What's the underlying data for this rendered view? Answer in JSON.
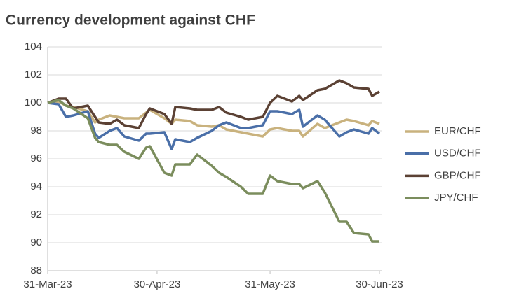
{
  "chart_data": {
    "type": "line",
    "title": "Currency development against CHF",
    "x": [
      "2023-03-31",
      "2023-04-03",
      "2023-04-05",
      "2023-04-07",
      "2023-04-11",
      "2023-04-13",
      "2023-04-14",
      "2023-04-17",
      "2023-04-19",
      "2023-04-21",
      "2023-04-25",
      "2023-04-27",
      "2023-04-28",
      "2023-05-02",
      "2023-05-04",
      "2023-05-05",
      "2023-05-09",
      "2023-05-11",
      "2023-05-15",
      "2023-05-17",
      "2023-05-19",
      "2023-05-23",
      "2023-05-25",
      "2023-05-29",
      "2023-05-31",
      "2023-06-02",
      "2023-06-06",
      "2023-06-08",
      "2023-06-09",
      "2023-06-13",
      "2023-06-15",
      "2023-06-19",
      "2023-06-21",
      "2023-06-23",
      "2023-06-27",
      "2023-06-28",
      "2023-06-30"
    ],
    "series": [
      {
        "name": "EUR/CHF",
        "color": "#c9b27e",
        "values": [
          100,
          100.1,
          99.8,
          99.7,
          99.4,
          98.6,
          98.8,
          99.1,
          99.0,
          98.9,
          98.9,
          99.3,
          99.5,
          98.9,
          98.5,
          98.8,
          98.7,
          98.4,
          98.3,
          98.4,
          98.1,
          97.9,
          97.8,
          97.6,
          98.1,
          98.2,
          98.0,
          98.0,
          97.6,
          98.5,
          98.2,
          98.6,
          98.8,
          98.7,
          98.4,
          98.7,
          98.5
        ]
      },
      {
        "name": "USD/CHF",
        "color": "#4a6fa8",
        "values": [
          100,
          99.9,
          99.0,
          99.1,
          99.4,
          97.8,
          97.5,
          98.0,
          98.2,
          97.6,
          97.3,
          97.8,
          97.8,
          97.9,
          96.7,
          97.4,
          97.2,
          97.5,
          98.0,
          98.4,
          98.6,
          98.2,
          98.2,
          98.4,
          99.4,
          99.4,
          99.2,
          99.5,
          98.3,
          99.1,
          98.8,
          97.6,
          97.9,
          98.1,
          97.8,
          98.2,
          97.8
        ]
      },
      {
        "name": "GBP/CHF",
        "color": "#5b4134",
        "values": [
          100,
          100.3,
          100.3,
          99.6,
          99.8,
          99.0,
          98.6,
          98.5,
          98.8,
          98.4,
          98.2,
          99.2,
          99.6,
          99.2,
          98.5,
          99.7,
          99.6,
          99.5,
          99.5,
          99.7,
          99.3,
          99.0,
          98.8,
          99.0,
          100.0,
          100.5,
          100.1,
          100.5,
          100.2,
          100.9,
          101.0,
          101.6,
          101.4,
          101.1,
          101.0,
          100.5,
          100.8
        ]
      },
      {
        "name": "JPY/CHF",
        "color": "#7b8d5d",
        "values": [
          100,
          100.2,
          99.8,
          99.6,
          98.9,
          97.5,
          97.2,
          97.0,
          97.0,
          96.5,
          96.0,
          96.8,
          96.9,
          95.0,
          94.8,
          95.6,
          95.6,
          96.3,
          95.5,
          95.0,
          94.7,
          94.0,
          93.5,
          93.5,
          94.8,
          94.4,
          94.2,
          94.2,
          93.9,
          94.4,
          93.6,
          91.5,
          91.5,
          90.7,
          90.6,
          90.1,
          90.1
        ]
      }
    ],
    "xlim": [
      "2023-03-31",
      "2023-06-30"
    ],
    "xticks": [
      {
        "value": "2023-03-31",
        "label": "31-Mar-23"
      },
      {
        "value": "2023-04-30",
        "label": "30-Apr-23"
      },
      {
        "value": "2023-05-31",
        "label": "31-May-23"
      },
      {
        "value": "2023-06-30",
        "label": "30-Jun-23"
      }
    ],
    "ylim": [
      88,
      104
    ],
    "yticks": [
      88,
      90,
      92,
      94,
      96,
      98,
      100,
      102,
      104
    ],
    "grid": true,
    "legend": "right"
  }
}
